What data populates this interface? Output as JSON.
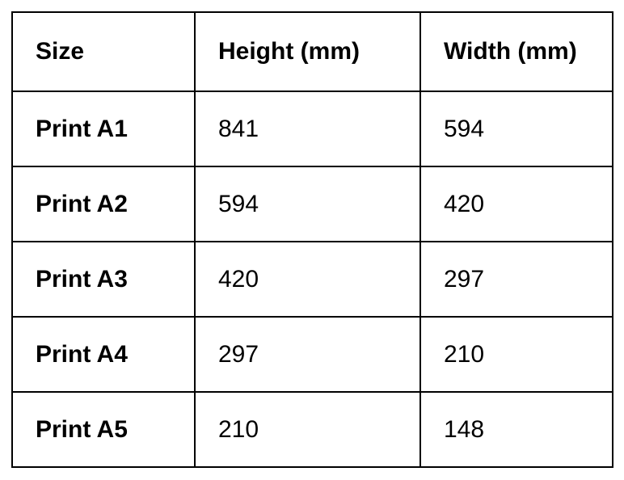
{
  "page": {
    "background_color": "#ffffff",
    "border_color": "#000000",
    "text_color": "#000000"
  },
  "table": {
    "headers": {
      "size": "Size",
      "height": "Height (mm)",
      "width": "Width (mm)"
    },
    "rows": [
      {
        "size": "Print A1",
        "height_mm": "841",
        "width_mm": "594"
      },
      {
        "size": "Print A2",
        "height_mm": "594",
        "width_mm": "420"
      },
      {
        "size": "Print A3",
        "height_mm": "420",
        "width_mm": "297"
      },
      {
        "size": "Print A4",
        "height_mm": "297",
        "width_mm": "210"
      },
      {
        "size": "Print A5",
        "height_mm": "210",
        "width_mm": "148"
      }
    ]
  }
}
